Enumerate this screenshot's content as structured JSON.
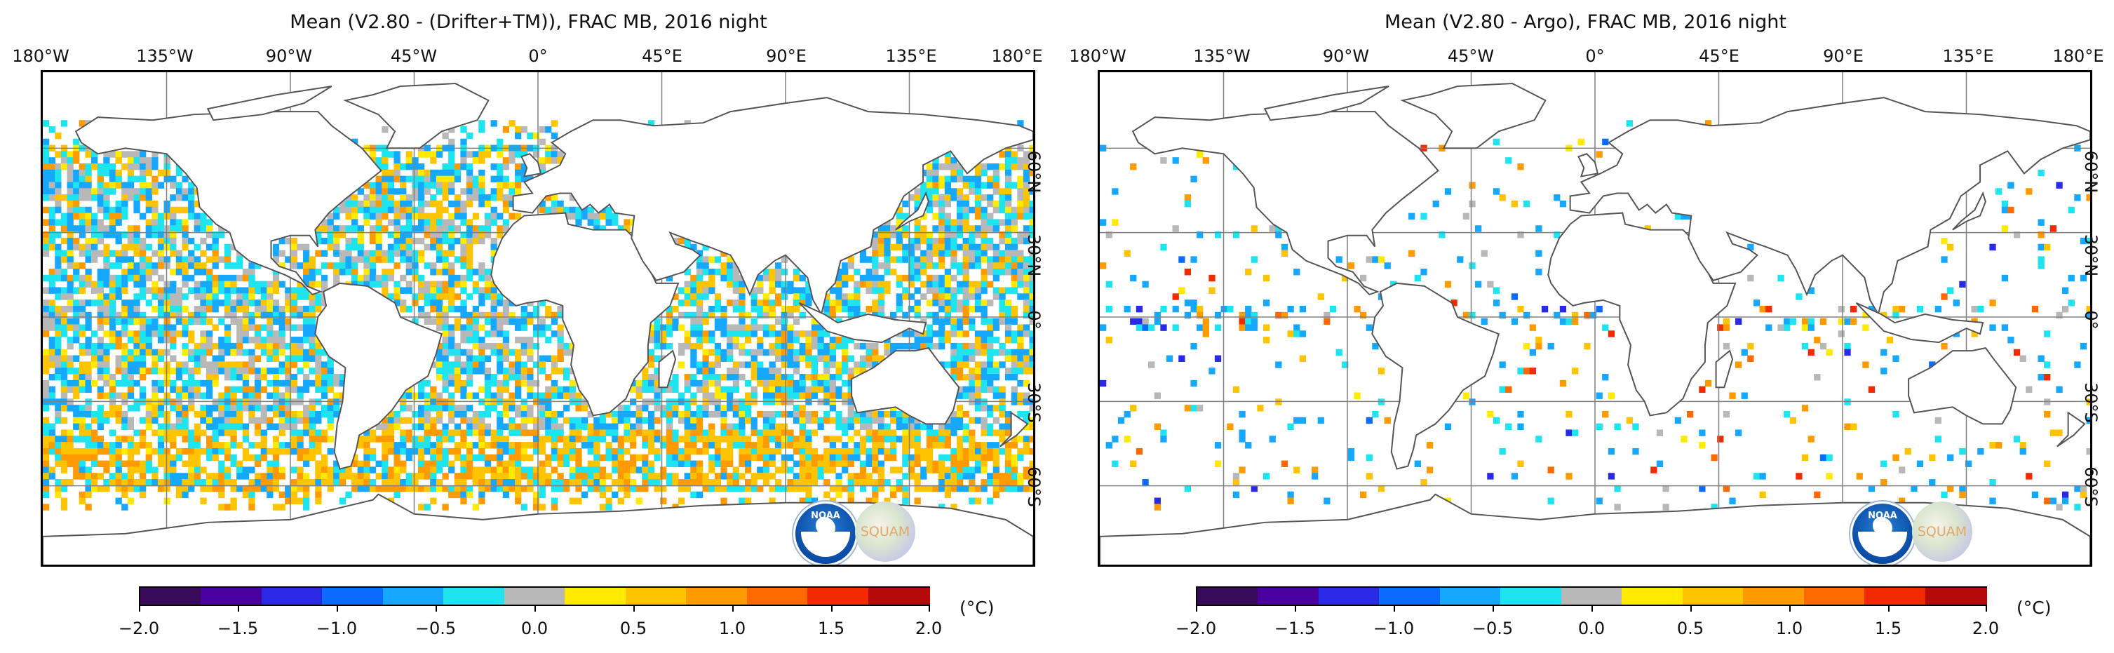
{
  "colors": {
    "land_outline": "#555555",
    "grid": "#808080",
    "frame": "#000000",
    "colormap": [
      "#3a0a5a",
      "#4b00a0",
      "#2a2ae6",
      "#0a6cff",
      "#16a8ff",
      "#1ee4f0",
      "#b8b8b8",
      "#ffea00",
      "#ffc400",
      "#ff9a00",
      "#ff6a00",
      "#f22a00",
      "#b40a0a"
    ]
  },
  "panels": [
    {
      "id": "left",
      "title": "Mean (V2.80 - (Drifter+TM)), FRAC MB, 2016 night",
      "lon_labels": [
        "180°W",
        "135°W",
        "90°W",
        "45°W",
        "0°",
        "45°E",
        "90°E",
        "135°E",
        "180°E"
      ],
      "lat_labels": [
        "60°N",
        "30°N",
        "0°",
        "30°S",
        "60°S"
      ],
      "density": "high",
      "colorbar": {
        "ticks": [
          "−2.0",
          "−1.5",
          "−1.0",
          "−0.5",
          "0.0",
          "0.5",
          "1.0",
          "1.5",
          "2.0"
        ],
        "min": -2.0,
        "max": 2.0,
        "unit": "(°C)"
      },
      "logos": {
        "noaa": "NOAA",
        "squam": "SQUAM"
      }
    },
    {
      "id": "right",
      "title": "Mean (V2.80 - Argo), FRAC MB, 2016 night",
      "lon_labels": [
        "180°W",
        "135°W",
        "90°W",
        "45°W",
        "0°",
        "45°E",
        "90°E",
        "135°E",
        "180°E"
      ],
      "lat_labels": [
        "60°N",
        "30°N",
        "0°",
        "30°S",
        "60°S"
      ],
      "density": "sparse",
      "colorbar": {
        "ticks": [
          "−2.0",
          "−1.5",
          "−1.0",
          "−0.5",
          "0.0",
          "0.5",
          "1.0",
          "1.5",
          "2.0"
        ],
        "min": -2.0,
        "max": 2.0,
        "unit": "(°C)"
      },
      "logos": {
        "noaa": "NOAA",
        "squam": "SQUAM"
      }
    }
  ]
}
